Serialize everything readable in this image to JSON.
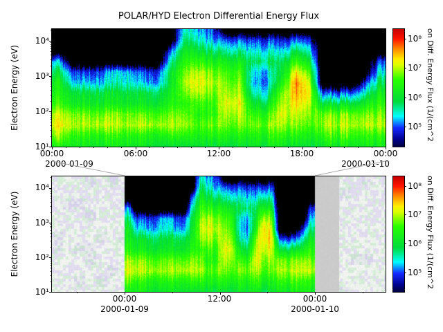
{
  "title": "POLAR/HYD  Electron Differential Energy Flux",
  "panels": {
    "top": {
      "y_axis_label": "Electron Energy (eV)",
      "y_ticks": [
        "10⁴",
        "10³",
        "10²",
        "10¹"
      ],
      "x_ticks": [
        "00:00",
        "06:00",
        "12:00",
        "18:00",
        "00:00"
      ],
      "date_left": "2000-01-09",
      "date_right": "2000-01-10",
      "colorbar_ticks": [
        "10⁸",
        "10⁷",
        "10⁶",
        "10⁵"
      ],
      "colorbar_label": "on Diff. Energy Flux (1/(cm^2"
    },
    "bottom": {
      "y_axis_label": "Electron Energy (eV)",
      "y_ticks": [
        "10⁴",
        "10³",
        "10²",
        "10¹"
      ],
      "x_ticks": [
        "00:00",
        "12:00",
        "00:00"
      ],
      "date_left": "2000-01-09",
      "date_right": "2000-01-10",
      "colorbar_ticks": [
        "10⁸",
        "10⁷",
        "10⁶",
        "10⁵"
      ],
      "colorbar_label": "on Diff. Energy Flux (1/(cm^2"
    }
  },
  "chart_data": {
    "type": "heatmap",
    "title": "POLAR/HYD  Electron Differential Energy Flux",
    "panels": [
      {
        "name": "top",
        "x_range": [
          "2000-01-09 00:00",
          "2000-01-10 00:00"
        ],
        "x_tick_labels": [
          "00:00",
          "06:00",
          "12:00",
          "18:00",
          "00:00"
        ],
        "x_date_labels": [
          "2000-01-09",
          "2000-01-10"
        ],
        "y_label": "Electron Energy (eV)",
        "y_scale": "log",
        "y_range_eV": [
          10,
          21000
        ],
        "y_tick_values_eV": [
          10000,
          1000,
          100,
          10
        ]
      },
      {
        "name": "bottom",
        "x_tick_labels": [
          "00:00",
          "12:00",
          "00:00"
        ],
        "x_date_labels": [
          "2000-01-09",
          "2000-01-10"
        ],
        "highlight_range": [
          "2000-01-09 00:00",
          "2000-01-10 00:00"
        ],
        "context_note": "data outside the selected day is shown faded/dimmed; a gray data-gap band appears immediately after 2000-01-10 00:00",
        "y_label": "Electron Energy (eV)",
        "y_scale": "log",
        "y_range_eV": [
          10,
          21000
        ],
        "y_tick_values_eV": [
          10000,
          1000,
          100,
          10
        ]
      }
    ],
    "colorbar": {
      "label_visible_partial": "on Diff. Energy Flux (1/(cm^2",
      "tick_labels": [
        "10⁸",
        "10⁷",
        "10⁶",
        "10⁵"
      ],
      "tick_values": [
        100000000.0,
        10000000.0,
        1000000.0,
        100000.0
      ],
      "range_log10": [
        4.32,
        8.33
      ]
    },
    "colormap": {
      "black_below": 4.5,
      "range_log10": [
        4.32,
        8.33
      ],
      "stops": [
        [
          4.3,
          [
            0,
            0,
            60
          ]
        ],
        [
          4.55,
          [
            0,
            0,
            140
          ]
        ],
        [
          4.95,
          [
            20,
            40,
            255
          ]
        ],
        [
          5.35,
          [
            0,
            255,
            255
          ]
        ],
        [
          5.85,
          [
            0,
            220,
            60
          ]
        ],
        [
          6.6,
          [
            40,
            255,
            0
          ]
        ],
        [
          7.1,
          [
            220,
            255,
            0
          ]
        ],
        [
          7.3,
          [
            255,
            240,
            0
          ]
        ],
        [
          7.65,
          [
            255,
            140,
            0
          ]
        ],
        [
          8.0,
          [
            255,
            20,
            0
          ]
        ],
        [
          8.33,
          [
            200,
            0,
            0
          ]
        ]
      ]
    },
    "context_style": {
      "pale_lavender": "#e2dcf0",
      "pale_white": "#f1f3f0",
      "pale_green": "#d5edd7",
      "gray_gap": "#cbcbcb"
    },
    "spectrogram_estimate": {
      "description": "Coarse estimate of log10 electron differential energy flux for 2000-01-09 (both panels depict this day; bottom panel adds faded context on either side). Rows: energy high-to-low; Cols: hours 00-23. 0 = below color scale (black).",
      "row_energies_log10_eV": [
        4.2,
        3.9,
        3.6,
        3.3,
        3.0,
        2.7,
        2.4,
        2.1,
        1.8,
        1.5,
        1.25,
        1.05
      ],
      "col_hours": [
        0,
        1,
        2,
        3,
        4,
        5,
        6,
        7,
        8,
        9,
        10,
        11,
        12,
        13,
        14,
        15,
        16,
        17,
        18,
        19,
        20,
        21,
        22,
        23
      ],
      "log10_flux": [
        [
          0,
          0,
          0,
          0,
          0,
          0,
          0,
          0,
          0,
          5.5,
          5.2,
          5.0,
          0,
          0,
          0,
          0,
          0,
          0,
          0,
          0,
          0,
          0,
          0,
          0
        ],
        [
          0,
          0,
          0,
          0,
          0,
          0,
          0,
          0,
          0,
          5.8,
          5.5,
          5.2,
          5.0,
          5.0,
          4.9,
          4.9,
          4.8,
          5.0,
          4.8,
          0,
          0,
          0,
          0,
          0
        ],
        [
          0,
          0,
          0,
          0,
          0,
          0,
          0,
          0,
          4.9,
          6.2,
          6.0,
          5.8,
          5.6,
          5.6,
          5.4,
          5.4,
          5.3,
          5.8,
          5.4,
          0,
          0,
          0,
          0,
          0
        ],
        [
          5.2,
          0,
          0,
          0,
          0,
          0,
          0,
          0,
          5.5,
          6.5,
          6.5,
          6.3,
          6.2,
          6.2,
          5.8,
          5.8,
          5.8,
          6.5,
          6.0,
          0,
          0,
          0,
          0,
          4.9
        ],
        [
          5.8,
          4.9,
          4.9,
          4.9,
          5.3,
          5.3,
          4.9,
          4.9,
          5.9,
          6.8,
          7.0,
          6.8,
          6.6,
          6.6,
          5.3,
          5.3,
          6.0,
          7.2,
          6.6,
          0,
          0,
          0,
          0,
          5.4
        ],
        [
          6.2,
          5.3,
          5.3,
          5.2,
          5.5,
          5.5,
          5.2,
          5.2,
          6.0,
          7.0,
          7.2,
          7.0,
          6.8,
          6.8,
          5.2,
          5.2,
          6.3,
          7.6,
          7.0,
          0,
          0,
          0,
          4.8,
          5.8
        ],
        [
          6.3,
          6.0,
          6.0,
          5.9,
          6.0,
          6.0,
          5.9,
          5.9,
          6.2,
          6.8,
          7.0,
          6.8,
          7.0,
          7.0,
          5.5,
          5.5,
          6.8,
          7.5,
          7.2,
          5.0,
          5.0,
          5.0,
          5.5,
          6.2
        ],
        [
          6.5,
          6.2,
          6.2,
          6.1,
          6.2,
          6.2,
          6.1,
          6.1,
          6.4,
          6.5,
          6.6,
          6.5,
          7.2,
          7.2,
          6.0,
          6.0,
          7.0,
          7.3,
          7.0,
          6.0,
          6.0,
          6.0,
          6.2,
          6.5
        ],
        [
          7.0,
          6.8,
          6.8,
          6.7,
          6.8,
          6.8,
          6.7,
          6.7,
          6.8,
          6.8,
          6.4,
          6.5,
          7.0,
          7.0,
          6.5,
          6.5,
          7.2,
          7.0,
          6.8,
          6.8,
          6.8,
          6.8,
          6.8,
          6.8
        ],
        [
          7.2,
          7.0,
          7.0,
          7.0,
          7.0,
          7.0,
          7.0,
          7.0,
          7.0,
          7.0,
          6.6,
          6.8,
          6.8,
          6.8,
          6.8,
          6.8,
          7.0,
          6.8,
          6.6,
          7.0,
          7.0,
          7.0,
          7.0,
          7.0
        ],
        [
          6.8,
          6.5,
          6.5,
          6.4,
          6.5,
          6.5,
          6.4,
          6.4,
          6.5,
          6.5,
          6.3,
          6.4,
          6.4,
          6.4,
          6.4,
          6.4,
          6.6,
          6.4,
          6.2,
          6.6,
          6.6,
          6.6,
          6.5,
          6.5
        ],
        [
          6.3,
          6.2,
          6.2,
          6.1,
          6.2,
          6.2,
          6.1,
          6.1,
          6.0,
          6.0,
          6.0,
          6.0,
          6.0,
          6.0,
          6.1,
          6.1,
          6.2,
          6.0,
          5.9,
          6.2,
          6.2,
          6.2,
          6.2,
          6.2
        ]
      ]
    }
  }
}
